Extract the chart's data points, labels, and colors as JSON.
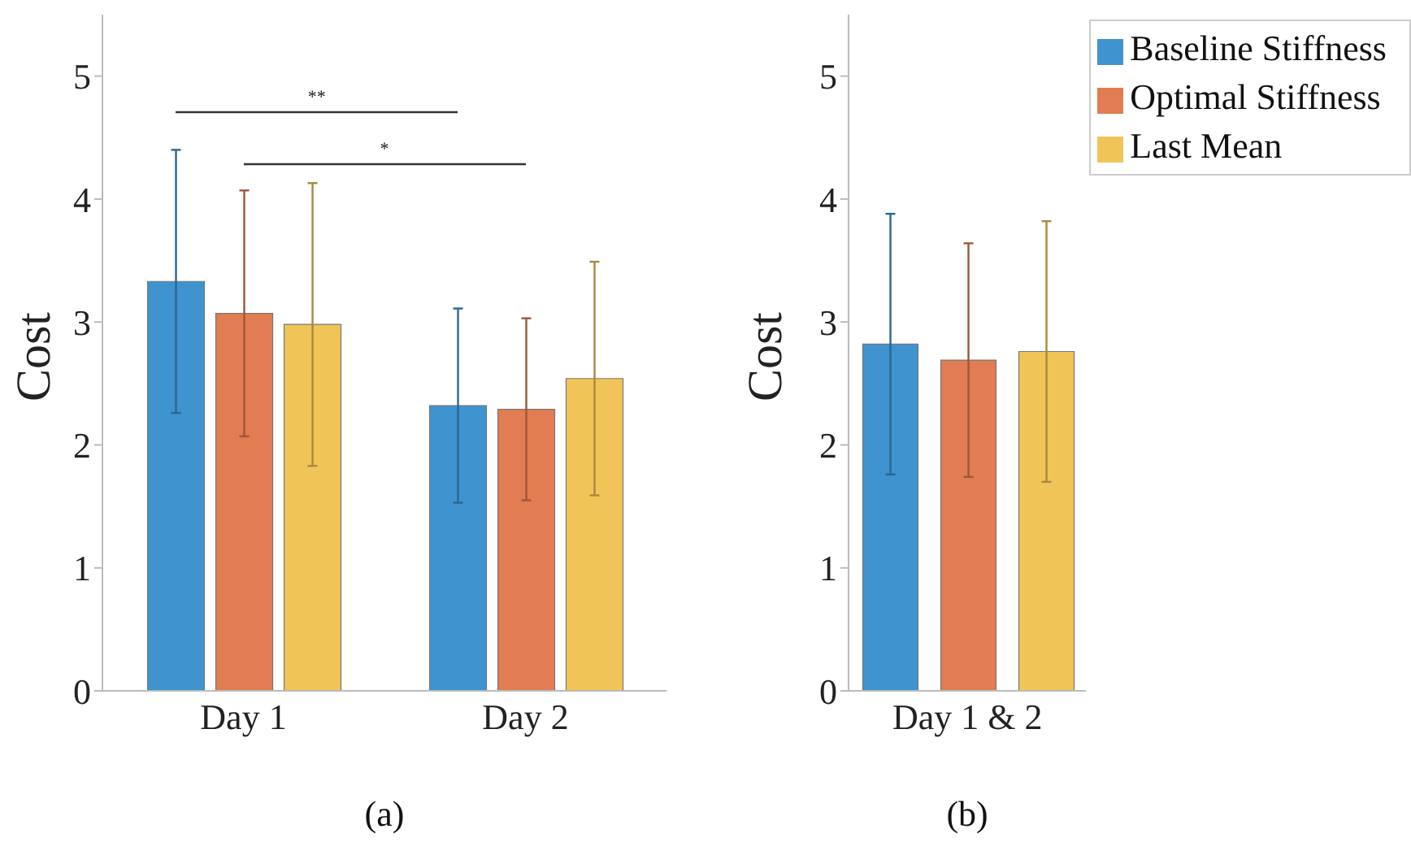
{
  "chart_data": [
    {
      "type": "bar",
      "categories": [
        "Day 1",
        "Day 2"
      ],
      "ylabel": "Cost",
      "ylim": [
        0,
        5.5
      ],
      "yticks": [
        0,
        1,
        2,
        3,
        4,
        5
      ],
      "grid": false,
      "legend": false,
      "series": [
        {
          "color": "#3f93cf",
          "values": [
            3.33,
            2.32
          ],
          "errors": [
            1.07,
            0.79
          ]
        },
        {
          "color": "#e27c52",
          "values": [
            3.07,
            2.29
          ],
          "errors": [
            1.0,
            0.74
          ]
        },
        {
          "color": "#f1c458",
          "values": [
            2.98,
            2.54
          ],
          "errors": [
            1.15,
            0.95
          ]
        }
      ],
      "annotations": [
        "**",
        "*"
      ],
      "title": "(a)"
    },
    {
      "type": "bar",
      "categories": [
        "Day 1 & 2"
      ],
      "ylabel": "Cost",
      "ylim": [
        0,
        5.5
      ],
      "yticks": [
        0,
        1,
        2,
        3,
        4,
        5
      ],
      "grid": false,
      "legend": "top right",
      "series": [
        {
          "name": "Baseline Stiffness",
          "color": "#3f93cf",
          "values": [
            2.82
          ],
          "errors": [
            1.06
          ]
        },
        {
          "name": "Optimal Stiffness",
          "color": "#e27c52",
          "values": [
            2.69
          ],
          "errors": [
            0.95
          ]
        },
        {
          "name": "Last Mean",
          "color": "#f1c458",
          "values": [
            2.76
          ],
          "errors": [
            1.06
          ]
        }
      ],
      "title": "(b)"
    }
  ]
}
